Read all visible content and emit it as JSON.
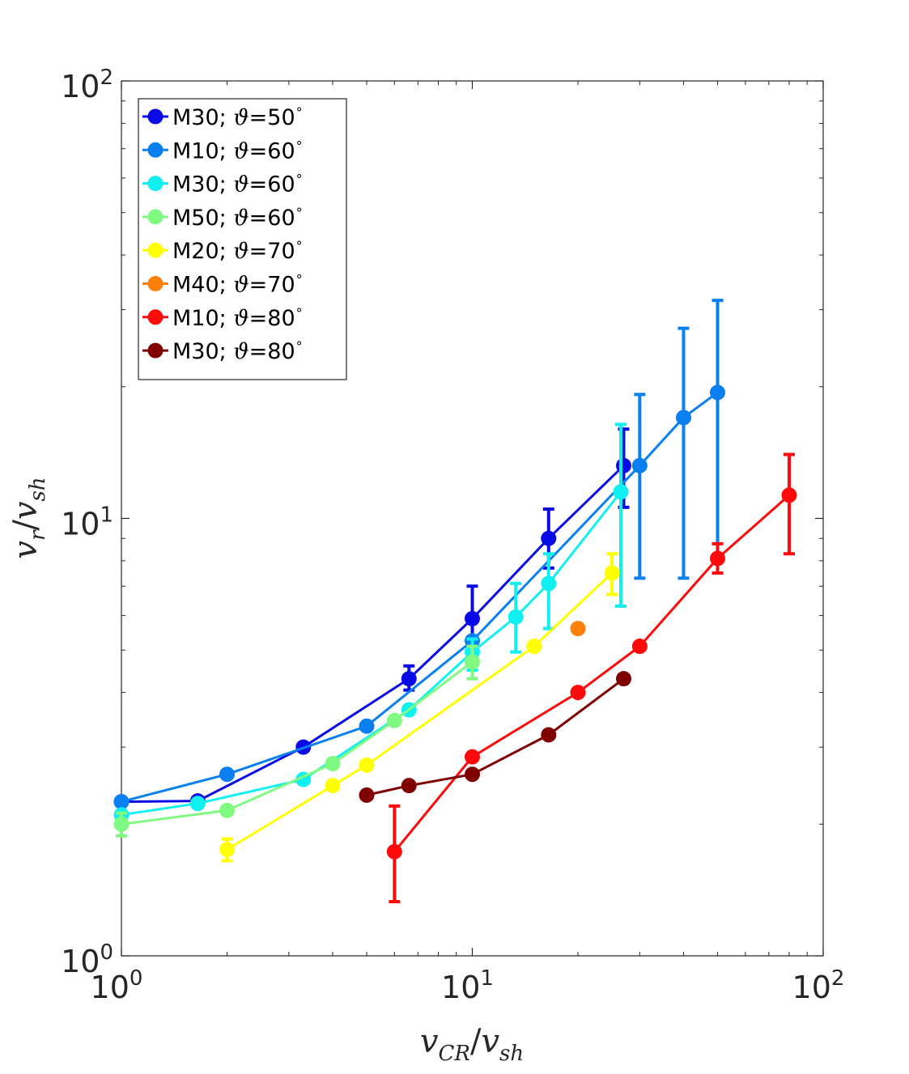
{
  "chart_data": {
    "type": "line",
    "xscale": "log",
    "yscale": "log",
    "xlim": [
      1,
      100
    ],
    "ylim": [
      1,
      100
    ],
    "xticks": [
      {
        "base": "10",
        "exp": "0",
        "value": 1
      },
      {
        "base": "10",
        "exp": "1",
        "value": 10
      },
      {
        "base": "10",
        "exp": "2",
        "value": 100
      }
    ],
    "yticks": [
      {
        "base": "10",
        "exp": "0",
        "value": 1
      },
      {
        "base": "10",
        "exp": "1",
        "value": 10
      },
      {
        "base": "10",
        "exp": "2",
        "value": 100
      }
    ],
    "xlabel": {
      "main": "v",
      "sub": "CR",
      "slash": "/",
      "main2": "v",
      "sub2": "sh"
    },
    "ylabel": {
      "main": "v",
      "sub": "r",
      "slash": "/",
      "main2": "v",
      "sub2": "sh"
    },
    "legend_position": "top-left",
    "series": [
      {
        "name": "M30; ϑ=50°",
        "label_prefix": "M30; ",
        "theta": "ϑ",
        "label_suffix": "=50",
        "degree": "∘",
        "color": "#0a0ae6",
        "points": [
          {
            "x": 1.0,
            "y": 2.25
          },
          {
            "x": 1.65,
            "y": 2.26
          },
          {
            "x": 3.3,
            "y": 3.0
          },
          {
            "x": 6.6,
            "y": 4.3,
            "err": [
              4.05,
              4.6
            ]
          },
          {
            "x": 10.0,
            "y": 5.9,
            "err": [
              4.9,
              7.0
            ]
          },
          {
            "x": 16.5,
            "y": 9.0,
            "err": [
              7.7,
              10.5
            ]
          },
          {
            "x": 27.0,
            "y": 13.2,
            "err": [
              10.6,
              16.0
            ]
          }
        ]
      },
      {
        "name": "M10; ϑ=60°",
        "label_prefix": "M10; ",
        "theta": "ϑ",
        "label_suffix": "=60",
        "degree": "∘",
        "color": "#0a80f0",
        "points": [
          {
            "x": 1.0,
            "y": 2.25
          },
          {
            "x": 2.0,
            "y": 2.6
          },
          {
            "x": 5.0,
            "y": 3.35
          },
          {
            "x": 10.0,
            "y": 5.25
          },
          {
            "x": 30.0,
            "y": 13.2,
            "err": [
              7.3,
              19.2
            ]
          },
          {
            "x": 40.0,
            "y": 17.0,
            "err": [
              7.3,
              27.2
            ]
          },
          {
            "x": 50.0,
            "y": 19.4,
            "err": [
              8.2,
              31.5
            ]
          }
        ]
      },
      {
        "name": "M30; ϑ=60°",
        "label_prefix": "M30; ",
        "theta": "ϑ",
        "label_suffix": "=60",
        "degree": "∘",
        "color": "#10f0f0",
        "points": [
          {
            "x": 1.0,
            "y": 2.1
          },
          {
            "x": 1.65,
            "y": 2.23
          },
          {
            "x": 3.3,
            "y": 2.53
          },
          {
            "x": 6.6,
            "y": 3.65
          },
          {
            "x": 10.0,
            "y": 4.95,
            "err": [
              4.5,
              5.3
            ]
          },
          {
            "x": 13.3,
            "y": 5.95,
            "err": [
              4.95,
              7.1
            ]
          },
          {
            "x": 16.5,
            "y": 7.1,
            "err": [
              5.6,
              8.3
            ]
          },
          {
            "x": 26.5,
            "y": 11.5,
            "err": [
              6.3,
              16.4
            ]
          }
        ]
      },
      {
        "name": "M50; ϑ=60°",
        "label_prefix": "M50; ",
        "theta": "ϑ",
        "label_suffix": "=60",
        "degree": "∘",
        "color": "#80fa80",
        "points": [
          {
            "x": 1.0,
            "y": 2.0,
            "err": [
              1.88,
              2.12
            ]
          },
          {
            "x": 2.0,
            "y": 2.15
          },
          {
            "x": 4.0,
            "y": 2.75
          },
          {
            "x": 6.0,
            "y": 3.45
          },
          {
            "x": 10.0,
            "y": 4.7,
            "err": [
              4.3,
              5.1
            ]
          }
        ]
      },
      {
        "name": "M20; ϑ=70°",
        "label_prefix": "M20; ",
        "theta": "ϑ",
        "label_suffix": "=70",
        "degree": "∘",
        "color": "#ffff00",
        "points": [
          {
            "x": 2.0,
            "y": 1.75,
            "err": [
              1.65,
              1.85
            ]
          },
          {
            "x": 4.0,
            "y": 2.45
          },
          {
            "x": 5.0,
            "y": 2.73
          },
          {
            "x": 15.0,
            "y": 5.1
          },
          {
            "x": 25.0,
            "y": 7.5,
            "err": [
              6.7,
              8.3
            ]
          }
        ]
      },
      {
        "name": "M40; ϑ=70°",
        "label_prefix": "M40; ",
        "theta": "ϑ",
        "label_suffix": "=70",
        "degree": "∘",
        "color": "#ff800a",
        "points": [
          {
            "x": 20.0,
            "y": 5.6
          }
        ]
      },
      {
        "name": "M10; ϑ=80°",
        "label_prefix": "M10; ",
        "theta": "ϑ",
        "label_suffix": "=80",
        "degree": "∘",
        "color": "#ff0a0a",
        "points": [
          {
            "x": 6.0,
            "y": 1.73,
            "err": [
              1.33,
              2.2
            ]
          },
          {
            "x": 10.0,
            "y": 2.85
          },
          {
            "x": 20.0,
            "y": 4.0
          },
          {
            "x": 30.0,
            "y": 5.1
          },
          {
            "x": 50.0,
            "y": 8.1,
            "err": [
              7.5,
              8.75
            ]
          },
          {
            "x": 80.0,
            "y": 11.3,
            "err": [
              8.3,
              14.0
            ]
          }
        ]
      },
      {
        "name": "M30; ϑ=80°",
        "label_prefix": "M30; ",
        "theta": "ϑ",
        "label_suffix": "=80",
        "degree": "∘",
        "color": "#800000",
        "points": [
          {
            "x": 5.0,
            "y": 2.33
          },
          {
            "x": 6.6,
            "y": 2.45
          },
          {
            "x": 10.0,
            "y": 2.6
          },
          {
            "x": 16.5,
            "y": 3.2
          },
          {
            "x": 27.0,
            "y": 4.3
          }
        ]
      }
    ]
  }
}
